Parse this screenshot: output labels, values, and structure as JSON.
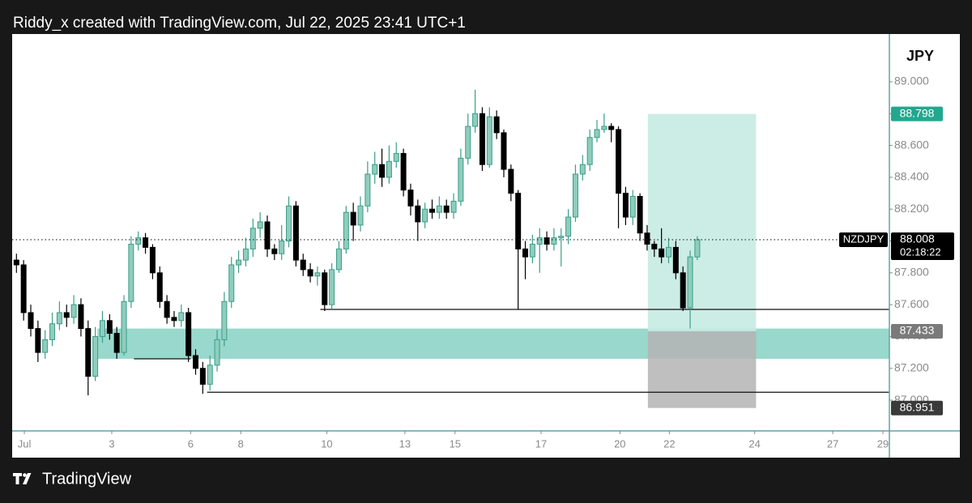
{
  "header": "Riddy_x created with TradingView.com, Jul 22, 2025 23:41 UTC+1",
  "footer": "TradingView",
  "chart_data": {
    "type": "candlestick",
    "symbol": "NZDJPY",
    "currency": "JPY",
    "countdown": "02:18:22",
    "up_color": "#8fcdbd",
    "up_edge": "#3a9e88",
    "down_color": "#000000",
    "ylim": [
      86.807,
      89.3
    ],
    "yticks": [
      {
        "value": 87,
        "label": "87.000"
      },
      {
        "value": 87.2,
        "label": "87.200"
      },
      {
        "value": 87.4,
        "label": "87.400"
      },
      {
        "value": 87.6,
        "label": "87.600"
      },
      {
        "value": 87.8,
        "label": "87.800"
      },
      {
        "value": 88,
        "label": "88.000"
      },
      {
        "value": 88.2,
        "label": "88.200"
      },
      {
        "value": 88.4,
        "label": "88.400"
      },
      {
        "value": 88.6,
        "label": "88.600"
      },
      {
        "value": 88.8,
        "label": "88.800"
      },
      {
        "value": 89,
        "label": "89.000"
      }
    ],
    "xlim": [
      -0.6,
      121.8
    ],
    "xticks": [
      {
        "value": 1.1,
        "label": "Jul"
      },
      {
        "value": 13.3,
        "label": "3"
      },
      {
        "value": 24.3,
        "label": "6"
      },
      {
        "value": 31.3,
        "label": "8"
      },
      {
        "value": 43.3,
        "label": "10"
      },
      {
        "value": 54.2,
        "label": "13"
      },
      {
        "value": 61.2,
        "label": "15"
      },
      {
        "value": 73.2,
        "label": "17"
      },
      {
        "value": 84.2,
        "label": "20"
      },
      {
        "value": 91.1,
        "label": "22"
      },
      {
        "value": 103,
        "label": "24"
      },
      {
        "value": 113.9,
        "label": "27"
      },
      {
        "value": 120.9,
        "label": "29"
      }
    ],
    "open": [
      87.88,
      87.85,
      87.55,
      87.45,
      87.3,
      87.38,
      87.48,
      87.55,
      87.52,
      87.6,
      87.45,
      87.15,
      87.4,
      87.5,
      87.42,
      87.3,
      87.62,
      87.98,
      88.02,
      87.96,
      87.8,
      87.62,
      87.52,
      87.5,
      87.55,
      87.28,
      87.2,
      87.1,
      87.22,
      87.38,
      87.62,
      87.85,
      87.88,
      87.95,
      88.08,
      88.12,
      87.95,
      87.92,
      88.0,
      88.22,
      87.88,
      87.82,
      87.78,
      87.8,
      87.6,
      87.82,
      87.95,
      88.18,
      88.1,
      88.22,
      88.42,
      88.48,
      88.4,
      88.5,
      88.55,
      88.32,
      88.22,
      88.12,
      88.2,
      88.18,
      88.22,
      88.18,
      88.25,
      88.52,
      88.72,
      88.8,
      88.48,
      88.78,
      88.68,
      88.45,
      88.3,
      87.95,
      87.9,
      87.98,
      88.02,
      87.98,
      88.02,
      88.03,
      88.15,
      88.42,
      88.48,
      88.65,
      88.7,
      88.72,
      88.7,
      88.3,
      88.15,
      88.28,
      88.05,
      87.98,
      87.95,
      87.9,
      87.96,
      87.8,
      87.58,
      87.9
    ],
    "high": [
      87.92,
      87.88,
      87.6,
      87.5,
      87.44,
      87.55,
      87.62,
      87.6,
      87.66,
      87.64,
      87.5,
      87.46,
      87.56,
      87.54,
      87.46,
      87.66,
      88.03,
      88.06,
      88.05,
      87.98,
      87.84,
      87.66,
      87.56,
      87.6,
      87.58,
      87.32,
      87.24,
      87.28,
      87.44,
      87.68,
      87.9,
      87.94,
      88.02,
      88.14,
      88.18,
      88.16,
      87.98,
      88.1,
      88.28,
      88.25,
      87.92,
      87.86,
      87.84,
      87.82,
      87.86,
      88.0,
      88.22,
      88.24,
      88.28,
      88.5,
      88.56,
      88.58,
      88.6,
      88.62,
      88.58,
      88.36,
      88.26,
      88.24,
      88.26,
      88.28,
      88.26,
      88.3,
      88.58,
      88.8,
      88.95,
      88.84,
      88.84,
      88.82,
      88.7,
      88.48,
      88.32,
      88.0,
      88.04,
      88.08,
      88.06,
      88.08,
      88.08,
      88.2,
      88.48,
      88.54,
      88.7,
      88.76,
      88.8,
      88.74,
      88.72,
      88.34,
      88.32,
      88.3,
      88.1,
      88.0,
      88.08,
      88.02,
      88.0,
      87.84,
      87.94,
      88.03
    ],
    "low": [
      87.8,
      87.5,
      87.4,
      87.24,
      87.26,
      87.34,
      87.44,
      87.46,
      87.48,
      87.4,
      87.03,
      87.12,
      87.36,
      87.38,
      87.26,
      87.28,
      87.58,
      87.94,
      87.92,
      87.76,
      87.58,
      87.48,
      87.46,
      87.46,
      87.24,
      87.16,
      87.04,
      87.06,
      87.18,
      87.34,
      87.58,
      87.8,
      87.84,
      87.9,
      88.02,
      87.9,
      87.88,
      87.88,
      87.96,
      87.84,
      87.78,
      87.74,
      87.72,
      87.56,
      87.57,
      87.8,
      87.92,
      88.0,
      88.06,
      88.18,
      88.36,
      88.34,
      88.36,
      88.46,
      88.28,
      88.16,
      88.0,
      88.08,
      88.14,
      88.14,
      88.14,
      88.14,
      88.22,
      88.48,
      88.68,
      88.44,
      88.46,
      88.64,
      88.4,
      88.25,
      87.57,
      87.76,
      87.86,
      87.8,
      87.94,
      87.94,
      87.84,
      87.98,
      88.12,
      88.38,
      88.44,
      88.62,
      88.68,
      88.62,
      88.08,
      88.1,
      88.1,
      88.0,
      87.94,
      87.9,
      87.86,
      87.86,
      87.76,
      87.56,
      87.45,
      87.88
    ],
    "close": [
      87.85,
      87.55,
      87.45,
      87.3,
      87.38,
      87.48,
      87.55,
      87.52,
      87.6,
      87.45,
      87.15,
      87.4,
      87.5,
      87.42,
      87.3,
      87.62,
      87.98,
      88.02,
      87.96,
      87.8,
      87.62,
      87.52,
      87.5,
      87.55,
      87.28,
      87.2,
      87.1,
      87.22,
      87.38,
      87.62,
      87.85,
      87.88,
      87.95,
      88.08,
      88.12,
      87.95,
      87.92,
      88.0,
      88.22,
      87.88,
      87.82,
      87.78,
      87.8,
      87.6,
      87.82,
      87.95,
      88.18,
      88.1,
      88.22,
      88.42,
      88.48,
      88.4,
      88.5,
      88.55,
      88.32,
      88.22,
      88.12,
      88.2,
      88.18,
      88.22,
      88.18,
      88.25,
      88.52,
      88.72,
      88.8,
      88.48,
      88.78,
      88.68,
      88.45,
      88.3,
      87.95,
      87.9,
      87.98,
      88.02,
      87.98,
      88.02,
      88.03,
      88.15,
      88.42,
      88.48,
      88.65,
      88.7,
      88.72,
      88.7,
      88.3,
      88.15,
      88.28,
      88.05,
      87.98,
      87.95,
      87.9,
      87.96,
      87.8,
      87.58,
      87.9,
      88.008
    ],
    "levels": [
      {
        "value": 87.57,
        "start": 42.4,
        "end": 121.8
      },
      {
        "value": 87.05,
        "start": 26.6,
        "end": 121.8
      },
      {
        "value": 87.26,
        "start": 16.4,
        "end": 24.3
      }
    ],
    "zone": {
      "low": 87.26,
      "high": 87.45,
      "start": 11.3,
      "end": 121.8,
      "color": "#99d8cc"
    },
    "position": {
      "target": 88.798,
      "entry": 87.433,
      "stop": 86.951,
      "start": 88.1,
      "end": 103.2,
      "profit_color": "#c7ebe3",
      "loss_color": "#b4b4b4"
    }
  }
}
